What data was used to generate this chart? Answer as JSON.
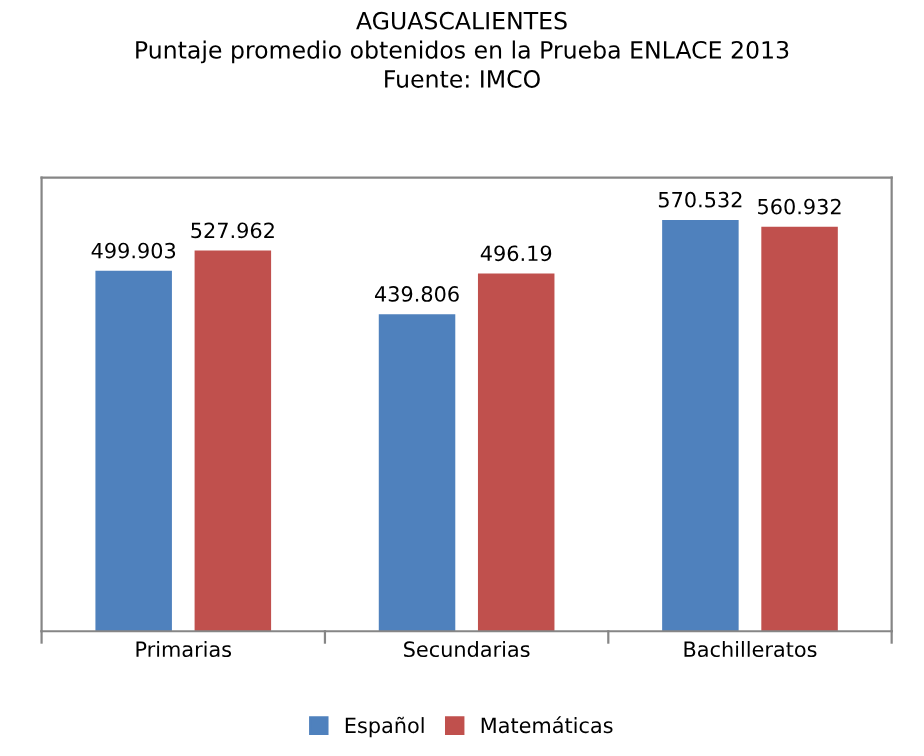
{
  "chart_data": {
    "type": "bar",
    "title": "AGUASCALIENTES\nPuntaje promedio obtenidos en la Prueba ENLACE 2013\nFuente: IMCO",
    "categories": [
      "Primarias",
      "Secundarias",
      "Bachilleratos"
    ],
    "series": [
      {
        "name": "Español",
        "color": "#4f81bd",
        "values": [
          499.903,
          439.806,
          570.532
        ]
      },
      {
        "name": "Matemáticas",
        "color": "#c0504d",
        "values": [
          527.962,
          496.19,
          560.932
        ]
      }
    ],
    "data_labels": true,
    "tick_labels": "x",
    "grid": false,
    "legend": "bottom"
  }
}
